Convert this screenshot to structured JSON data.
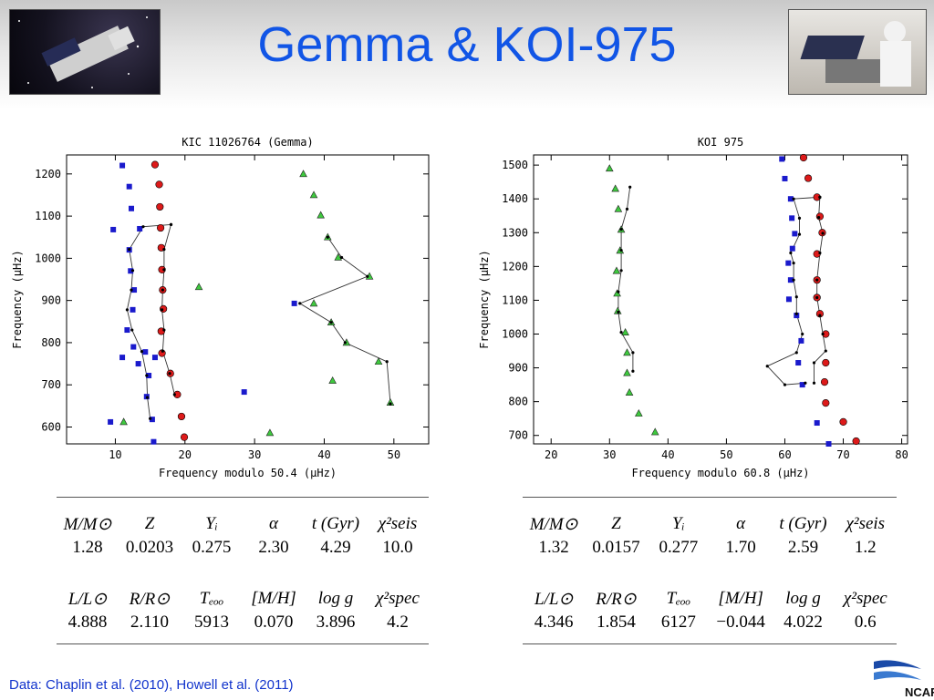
{
  "title": "Gemma & KOI-975",
  "footnote": "Data: Chaplin et al. (2010), Howell et al. (2011)",
  "logo": "NCAR",
  "chart_data": [
    {
      "type": "scatter",
      "title": "KIC 11026764 (Gemma)",
      "xlabel": "Frequency modulo 50.4 (μHz)",
      "ylabel": "Frequency (μHz)",
      "xlim": [
        3,
        55
      ],
      "ylim": [
        560,
        1245
      ],
      "xticks": [
        10,
        20,
        30,
        40,
        50
      ],
      "yticks": [
        600,
        700,
        800,
        900,
        1000,
        1100,
        1200
      ],
      "grid": false,
      "series": [
        {
          "marker": "square",
          "color": "#1a1acc",
          "points": [
            [
              11,
              1220
            ],
            [
              12,
              1170
            ],
            [
              12.3,
              1118
            ],
            [
              9.7,
              1068
            ],
            [
              13.5,
              1070
            ],
            [
              12,
              1020
            ],
            [
              12.2,
              970
            ],
            [
              12.7,
              925
            ],
            [
              12.5,
              878
            ],
            [
              11.7,
              830
            ],
            [
              12.6,
              790
            ],
            [
              14.3,
              778
            ],
            [
              11,
              765
            ],
            [
              13.3,
              750
            ],
            [
              15.7,
              765
            ],
            [
              14.8,
              722
            ],
            [
              14.5,
              672
            ],
            [
              15.3,
              618
            ],
            [
              9.3,
              612
            ],
            [
              15.5,
              565
            ],
            [
              28.5,
              683
            ],
            [
              35.7,
              893
            ]
          ]
        },
        {
          "marker": "circle",
          "color": "#dd1a1a",
          "points": [
            [
              15.7,
              1222
            ],
            [
              16.3,
              1175
            ],
            [
              16.4,
              1122
            ],
            [
              16.5,
              1072
            ],
            [
              16.6,
              1025
            ],
            [
              16.7,
              973
            ],
            [
              16.8,
              925
            ],
            [
              16.9,
              880
            ],
            [
              16.6,
              827
            ],
            [
              16.7,
              775
            ],
            [
              17.9,
              727
            ],
            [
              18.9,
              677
            ],
            [
              19.5,
              625
            ],
            [
              19.9,
              576
            ]
          ]
        },
        {
          "marker": "triangle",
          "color": "#3ec93e",
          "points": [
            [
              37,
              1200
            ],
            [
              38.5,
              1150
            ],
            [
              39.5,
              1102
            ],
            [
              40.5,
              1050
            ],
            [
              42,
              1002
            ],
            [
              46.5,
              957
            ],
            [
              38.5,
              893
            ],
            [
              22,
              932
            ],
            [
              41,
              848
            ],
            [
              43.2,
              800
            ],
            [
              47.8,
              755
            ],
            [
              41.2,
              710
            ],
            [
              49.5,
              658
            ],
            [
              11.2,
              612
            ],
            [
              32.2,
              586
            ]
          ]
        },
        {
          "marker": "dot",
          "color": "#000000",
          "line": true,
          "points": [
            [
              18,
              1080
            ],
            [
              14,
              1075
            ],
            [
              12,
              1021
            ],
            [
              12.5,
              971
            ],
            [
              12.3,
              925
            ],
            [
              11.7,
              878
            ],
            [
              12.4,
              830
            ],
            [
              13.8,
              779
            ],
            [
              14.5,
              722
            ],
            [
              14.6,
              670
            ],
            [
              15,
              620
            ]
          ]
        },
        {
          "marker": "dot",
          "color": "#000000",
          "line": true,
          "points": [
            [
              18,
              1080
            ],
            [
              17,
              1021
            ],
            [
              17,
              973
            ],
            [
              16.8,
              925
            ],
            [
              16.7,
              878
            ],
            [
              17,
              830
            ],
            [
              16.8,
              780
            ],
            [
              17.8,
              727
            ],
            [
              18.5,
              677
            ]
          ]
        },
        {
          "marker": "dot",
          "color": "#000000",
          "line": true,
          "points": [
            [
              40.5,
              1050
            ],
            [
              42.5,
              1002
            ],
            [
              46.2,
              957
            ],
            [
              36.5,
              893
            ],
            [
              41,
              848
            ],
            [
              43,
              800
            ],
            [
              49,
              755
            ],
            [
              49.5,
              655
            ]
          ]
        }
      ]
    },
    {
      "type": "scatter",
      "title": "KOI 975",
      "xlabel": "Frequency modulo 60.8 (μHz)",
      "ylabel": "Frequency (μHz)",
      "xlim": [
        17,
        81
      ],
      "ylim": [
        675,
        1530
      ],
      "xticks": [
        20,
        30,
        40,
        50,
        60,
        70,
        80
      ],
      "yticks": [
        700,
        800,
        900,
        1000,
        1100,
        1200,
        1300,
        1400,
        1500
      ],
      "grid": false,
      "series": [
        {
          "marker": "square",
          "color": "#1a1acc",
          "points": [
            [
              59.5,
              1518
            ],
            [
              60,
              1460
            ],
            [
              61,
              1400
            ],
            [
              61.2,
              1343
            ],
            [
              61.7,
              1297
            ],
            [
              61.3,
              1253
            ],
            [
              60.6,
              1210
            ],
            [
              61,
              1160
            ],
            [
              60.7,
              1103
            ],
            [
              62,
              1055
            ],
            [
              62.8,
              980
            ],
            [
              62.3,
              915
            ],
            [
              63,
              850
            ],
            [
              65.5,
              737
            ],
            [
              67.5,
              675
            ]
          ]
        },
        {
          "marker": "circle",
          "color": "#dd1a1a",
          "points": [
            [
              63.2,
              1522
            ],
            [
              64,
              1461
            ],
            [
              65.5,
              1405
            ],
            [
              66,
              1348
            ],
            [
              66.4,
              1300
            ],
            [
              65.5,
              1237
            ],
            [
              65.5,
              1160
            ],
            [
              65.5,
              1108
            ],
            [
              66,
              1060
            ],
            [
              67,
              1000
            ],
            [
              67,
              915
            ],
            [
              66.8,
              858
            ],
            [
              67,
              796
            ],
            [
              70,
              740
            ],
            [
              72.2,
              683
            ]
          ]
        },
        {
          "marker": "triangle",
          "color": "#3ec93e",
          "points": [
            [
              30,
              1490
            ],
            [
              31,
              1430
            ],
            [
              31.5,
              1370
            ],
            [
              32,
              1309
            ],
            [
              31.8,
              1247
            ],
            [
              31.2,
              1187
            ],
            [
              31.3,
              1120
            ],
            [
              31.4,
              1068
            ],
            [
              32.7,
              1005
            ],
            [
              33,
              945
            ],
            [
              33,
              885
            ],
            [
              33.4,
              827
            ],
            [
              35,
              765
            ],
            [
              37.8,
              710
            ]
          ]
        },
        {
          "marker": "dot",
          "color": "#000000",
          "line": true,
          "points": [
            [
              33.5,
              1435
            ],
            [
              33,
              1370
            ],
            [
              32,
              1310
            ],
            [
              32,
              1248
            ],
            [
              32,
              1188
            ],
            [
              31.5,
              1125
            ],
            [
              31.5,
              1065
            ],
            [
              32,
              1005
            ],
            [
              34,
              945
            ],
            [
              34,
              890
            ]
          ]
        },
        {
          "marker": "dot",
          "color": "#000000",
          "line": true,
          "points": [
            [
              66,
              1405
            ],
            [
              61.5,
              1400
            ],
            [
              62.5,
              1343
            ],
            [
              62.5,
              1295
            ],
            [
              61,
              1240
            ],
            [
              61.5,
              1210
            ],
            [
              61.5,
              1160
            ],
            [
              62,
              1110
            ],
            [
              62,
              1060
            ],
            [
              63,
              1000
            ],
            [
              62,
              945
            ],
            [
              57,
              905
            ],
            [
              60,
              850
            ],
            [
              63.5,
              855
            ]
          ]
        },
        {
          "marker": "dot",
          "color": "#000000",
          "line": true,
          "points": [
            [
              66,
              1405
            ],
            [
              65.8,
              1345
            ],
            [
              66.5,
              1298
            ],
            [
              66,
              1240
            ],
            [
              65.5,
              1160
            ],
            [
              65.5,
              1108
            ],
            [
              66,
              1055
            ],
            [
              66.5,
              1000
            ],
            [
              67,
              950
            ],
            [
              65,
              915
            ],
            [
              65,
              855
            ]
          ]
        }
      ]
    }
  ],
  "tables": [
    {
      "headers1": [
        "M/M⊙",
        "Z",
        "Yᵢ",
        "α",
        "t (Gyr)",
        "χ²seis"
      ],
      "values1": [
        "1.28",
        "0.0203",
        "0.275",
        "2.30",
        "4.29",
        "10.0"
      ],
      "headers2": [
        "L/L⊙",
        "R/R⊙",
        "Tₑₒₒ",
        "[M/H]",
        "log g",
        "χ²spec"
      ],
      "values2": [
        "4.888",
        "2.110",
        "5913",
        "0.070",
        "3.896",
        "4.2"
      ]
    },
    {
      "headers1": [
        "M/M⊙",
        "Z",
        "Yᵢ",
        "α",
        "t (Gyr)",
        "χ²seis"
      ],
      "values1": [
        "1.32",
        "0.0157",
        "0.277",
        "1.70",
        "2.59",
        "1.2"
      ],
      "headers2": [
        "L/L⊙",
        "R/R⊙",
        "Tₑₒₒ",
        "[M/H]",
        "log g",
        "χ²spec"
      ],
      "values2": [
        "4.346",
        "1.854",
        "6127",
        "−0.044",
        "4.022",
        "0.6"
      ]
    }
  ]
}
